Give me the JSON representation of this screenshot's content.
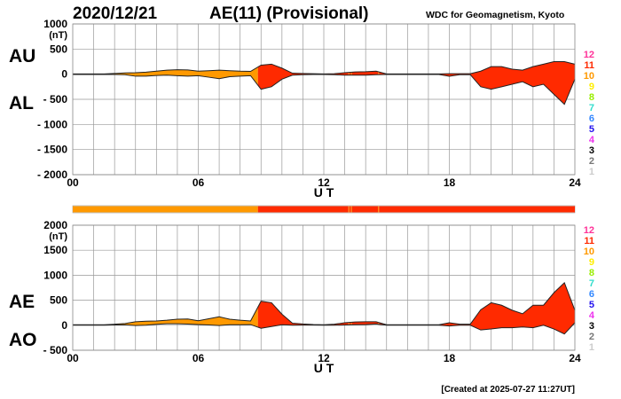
{
  "header": {
    "date": "2020/12/21",
    "title": "AE(11) (Provisional)",
    "source": "WDC for Geomagnetism, Kyoto",
    "created": "[Created at 2025-07-27 11:27UT]"
  },
  "legend": {
    "levels": [
      {
        "label": "12",
        "color": "#ff3399"
      },
      {
        "label": "11",
        "color": "#ff2a00"
      },
      {
        "label": "10",
        "color": "#ff9900"
      },
      {
        "label": "9",
        "color": "#ffee00"
      },
      {
        "label": "8",
        "color": "#99ee00"
      },
      {
        "label": "7",
        "color": "#33ddcc"
      },
      {
        "label": "6",
        "color": "#3388ff"
      },
      {
        "label": "5",
        "color": "#2211ee"
      },
      {
        "label": "4",
        "color": "#ee33ee"
      },
      {
        "label": "3",
        "color": "#000000"
      },
      {
        "label": "2",
        "color": "#777777"
      },
      {
        "label": "1",
        "color": "#cccccc"
      }
    ]
  },
  "station_bar": [
    {
      "start": 0,
      "end": 8.85,
      "level": "10"
    },
    {
      "start": 8.85,
      "end": 13.18,
      "level": "11"
    },
    {
      "start": 13.18,
      "end": 13.22,
      "level": "10"
    },
    {
      "start": 13.22,
      "end": 13.3,
      "level": "11"
    },
    {
      "start": 13.3,
      "end": 13.34,
      "level": "10"
    },
    {
      "start": 13.34,
      "end": 14.6,
      "level": "11"
    },
    {
      "start": 14.6,
      "end": 14.64,
      "level": "10"
    },
    {
      "start": 14.64,
      "end": 24,
      "level": "11"
    }
  ],
  "chart_data": [
    {
      "type": "area",
      "name": "AU/AL",
      "upper_label": "AU",
      "lower_label": "AL",
      "unit": "(nT)",
      "xlabel": "U T",
      "xlim": [
        0,
        24
      ],
      "ylim": [
        -2000,
        1000
      ],
      "yticks": [
        "1000",
        "500",
        "0",
        "- 500",
        "- 1000",
        "- 1500",
        "- 2000"
      ],
      "ytick_values": [
        1000,
        500,
        0,
        -500,
        -1000,
        -1500,
        -2000
      ],
      "xticks": [
        "00",
        "06",
        "12",
        "18",
        "24"
      ],
      "xtick_values": [
        0,
        6,
        12,
        18,
        24
      ],
      "grid": true,
      "x": [
        0,
        0.5,
        1,
        1.5,
        2,
        2.5,
        3,
        3.5,
        4,
        4.5,
        5,
        5.5,
        6,
        6.5,
        7,
        7.5,
        8,
        8.5,
        9,
        9.5,
        10,
        10.5,
        11,
        11.5,
        12,
        12.5,
        13,
        13.5,
        14,
        14.5,
        15,
        15.5,
        16,
        16.5,
        17,
        17.5,
        18,
        18.5,
        19,
        19.5,
        20,
        20.5,
        21,
        21.5,
        22,
        22.5,
        23,
        23.5,
        24
      ],
      "upper": [
        5,
        5,
        5,
        5,
        15,
        25,
        30,
        40,
        60,
        80,
        90,
        85,
        60,
        70,
        80,
        70,
        60,
        55,
        180,
        200,
        120,
        20,
        15,
        10,
        5,
        10,
        30,
        45,
        50,
        60,
        5,
        5,
        5,
        5,
        5,
        5,
        10,
        10,
        10,
        60,
        150,
        150,
        100,
        80,
        150,
        200,
        250,
        250,
        200
      ],
      "lower": [
        -5,
        -5,
        -5,
        -5,
        -5,
        -10,
        -40,
        -40,
        -25,
        -20,
        -30,
        -40,
        -30,
        -60,
        -90,
        -50,
        -40,
        -30,
        -300,
        -250,
        -100,
        -20,
        -10,
        -5,
        -5,
        -10,
        -20,
        -20,
        -20,
        -10,
        -5,
        -5,
        -5,
        -5,
        -5,
        -5,
        -40,
        -10,
        -10,
        -250,
        -300,
        -250,
        -200,
        -150,
        -250,
        -200,
        -400,
        -600,
        -100
      ]
    },
    {
      "type": "area",
      "name": "AE/AO",
      "upper_label": "AE",
      "lower_label": "AO",
      "unit": "(nT)",
      "xlabel": "U T",
      "xlim": [
        0,
        24
      ],
      "ylim": [
        -500,
        2000
      ],
      "yticks": [
        "2000",
        "1500",
        "1000",
        "500",
        "0",
        "- 500"
      ],
      "ytick_values": [
        2000,
        1500,
        1000,
        500,
        0,
        -500
      ],
      "xticks": [
        "00",
        "06",
        "12",
        "18",
        "24"
      ],
      "xtick_values": [
        0,
        6,
        12,
        18,
        24
      ],
      "grid": true,
      "x": [
        0,
        0.5,
        1,
        1.5,
        2,
        2.5,
        3,
        3.5,
        4,
        4.5,
        5,
        5.5,
        6,
        6.5,
        7,
        7.5,
        8,
        8.5,
        9,
        9.5,
        10,
        10.5,
        11,
        11.5,
        12,
        12.5,
        13,
        13.5,
        14,
        14.5,
        15,
        15.5,
        16,
        16.5,
        17,
        17.5,
        18,
        18.5,
        19,
        19.5,
        20,
        20.5,
        21,
        21.5,
        22,
        22.5,
        23,
        23.5,
        24
      ],
      "upper": [
        10,
        10,
        10,
        10,
        20,
        35,
        70,
        80,
        85,
        100,
        120,
        125,
        90,
        130,
        170,
        120,
        100,
        85,
        480,
        450,
        220,
        40,
        25,
        15,
        10,
        20,
        50,
        65,
        70,
        70,
        10,
        10,
        10,
        10,
        10,
        10,
        50,
        20,
        20,
        310,
        450,
        400,
        300,
        230,
        400,
        400,
        650,
        850,
        300
      ],
      "lower": [
        0,
        0,
        0,
        0,
        5,
        8,
        -5,
        0,
        18,
        30,
        30,
        23,
        15,
        5,
        -5,
        10,
        10,
        13,
        -60,
        -25,
        10,
        0,
        3,
        3,
        0,
        0,
        5,
        13,
        15,
        25,
        0,
        0,
        0,
        0,
        0,
        0,
        -15,
        0,
        0,
        -95,
        -75,
        -50,
        -50,
        -35,
        -50,
        0,
        -75,
        -175,
        50
      ]
    }
  ]
}
